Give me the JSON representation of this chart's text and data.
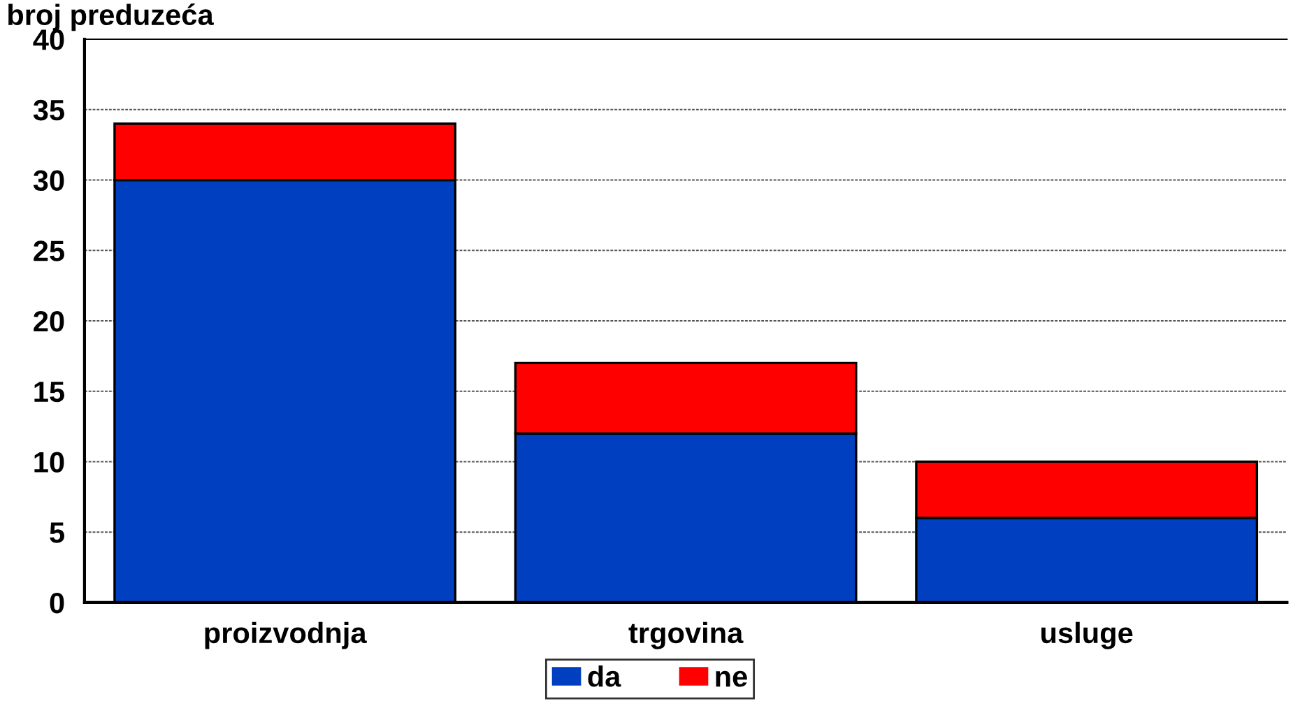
{
  "chart_data": {
    "type": "bar",
    "stacked": true,
    "title": "broj preduzeća",
    "categories": [
      "proizvodnja",
      "trgovina",
      "usluge"
    ],
    "series": [
      {
        "name": "da",
        "color": "#0040c0",
        "values": [
          30,
          12,
          6
        ]
      },
      {
        "name": "ne",
        "color": "#ff0000",
        "values": [
          4,
          5,
          4
        ]
      }
    ],
    "ylim": [
      0,
      40
    ],
    "yticks": [
      0,
      5,
      10,
      15,
      20,
      25,
      30,
      35,
      40
    ],
    "grid": "y",
    "legend": "bottom"
  }
}
